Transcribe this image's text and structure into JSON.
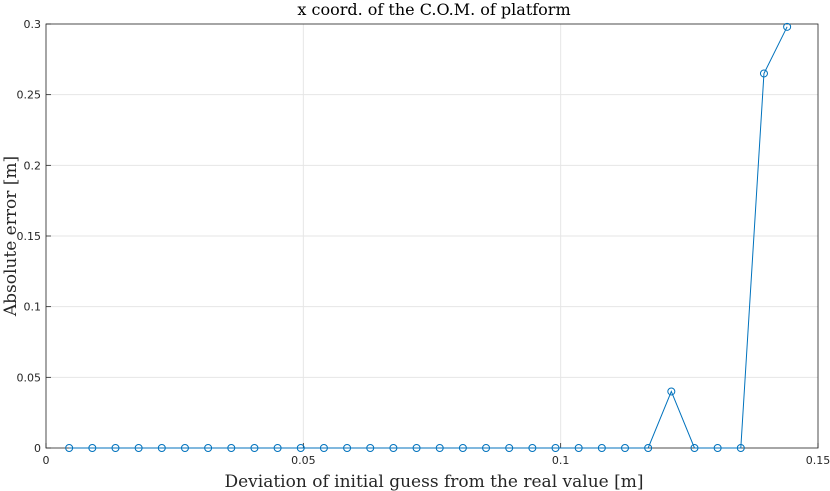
{
  "chart_data": {
    "type": "line",
    "title": "x coord. of the C.O.M. of platform",
    "xlabel": "Deviation of initial guess from the real value [m]",
    "ylabel": "Absolute error [m]",
    "xlim": [
      0,
      0.15
    ],
    "ylim": [
      0,
      0.3
    ],
    "xticks": [
      0,
      0.05,
      0.1,
      0.15
    ],
    "xtick_labels": [
      "0",
      "0.05",
      "0.1",
      "0.15"
    ],
    "yticks": [
      0,
      0.05,
      0.1,
      0.15,
      0.2,
      0.25,
      0.3
    ],
    "ytick_labels": [
      "0",
      "0.05",
      "0.1",
      "0.15",
      "0.2",
      "0.25",
      "0.3"
    ],
    "grid": true,
    "marker": "circle",
    "series": [
      {
        "color": "#0072BD",
        "x": [
          0.0045,
          0.009,
          0.0135,
          0.018,
          0.0225,
          0.027,
          0.0315,
          0.036,
          0.0405,
          0.045,
          0.0495,
          0.054,
          0.0585,
          0.063,
          0.0675,
          0.072,
          0.0765,
          0.081,
          0.0855,
          0.09,
          0.0945,
          0.099,
          0.1035,
          0.108,
          0.1125,
          0.117,
          0.1215,
          0.126,
          0.1305,
          0.135,
          0.1395,
          0.144
        ],
        "y": [
          0,
          0,
          0,
          0,
          0,
          0,
          0,
          0,
          0,
          0,
          0,
          0,
          0,
          0,
          0,
          0,
          0,
          0,
          0,
          0,
          0,
          0,
          0,
          0,
          0,
          0,
          0.04,
          0,
          0,
          0,
          0.265,
          0.298
        ]
      }
    ]
  }
}
